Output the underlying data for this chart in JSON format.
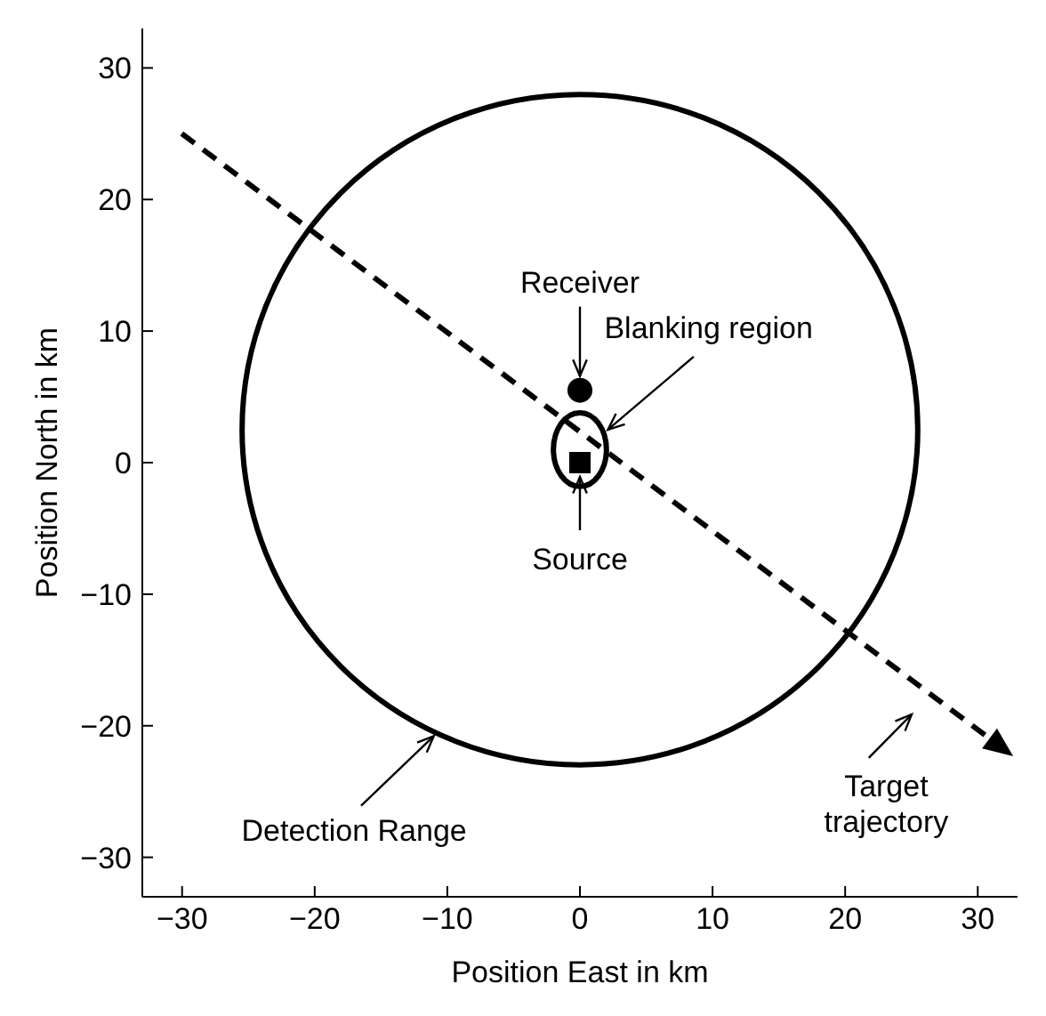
{
  "chart_data": {
    "type": "scatter",
    "xlabel": "Position East in km",
    "ylabel": "Position North in km",
    "xlim": [
      -33,
      33
    ],
    "ylim": [
      -33,
      33
    ],
    "xticks": [
      -30,
      -20,
      -10,
      0,
      10,
      20,
      30
    ],
    "yticks": [
      -30,
      -20,
      -10,
      0,
      10,
      20,
      30
    ],
    "legend": false,
    "series": [
      {
        "color": "#000000",
        "marker": "circle",
        "x": [
          0
        ],
        "values": [
          5.5
        ]
      },
      {
        "color": "#000000",
        "marker": "square",
        "x": [
          0
        ],
        "values": [
          0
        ]
      }
    ],
    "annotations": [
      {
        "text": "Receiver",
        "x": 0,
        "y": 5.5
      },
      "Blanking region",
      {
        "text": "Source",
        "x": 0,
        "y": 0
      },
      "Detection Range",
      "Target trajectory"
    ]
  }
}
